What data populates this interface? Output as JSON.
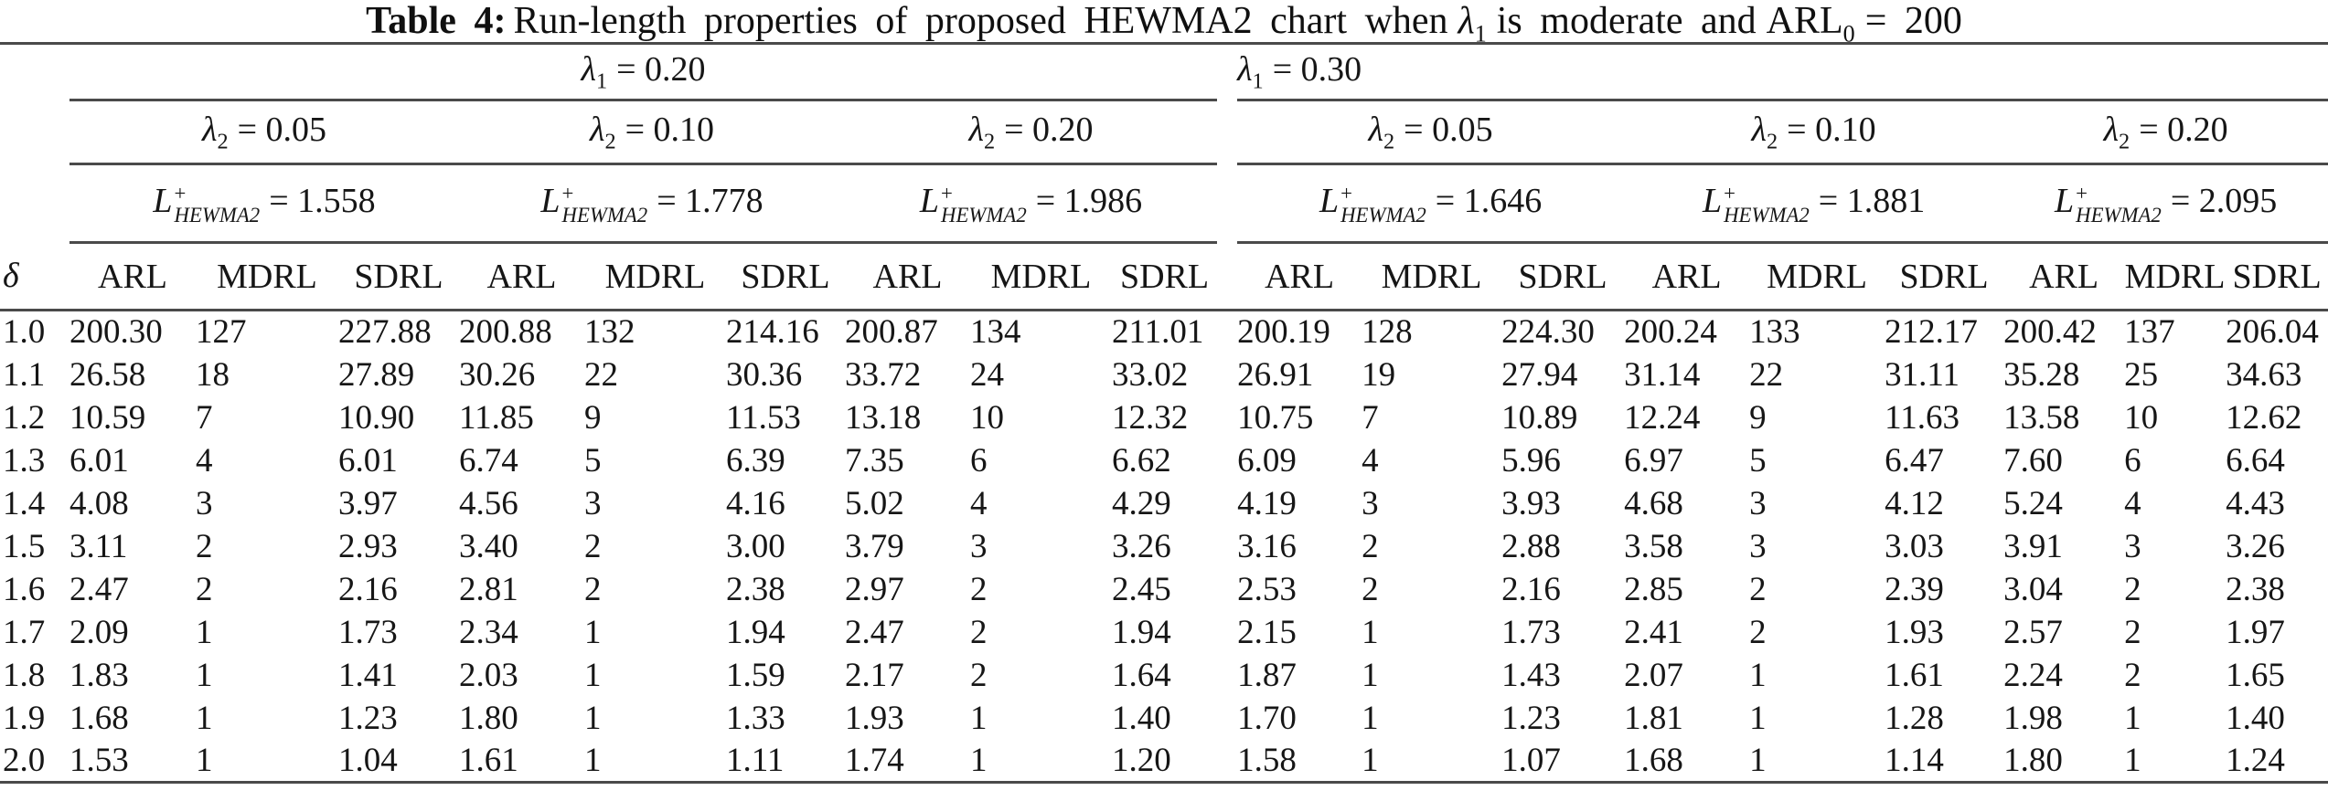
{
  "title": {
    "prefix": "Table 4:",
    "part1": "Run-length properties of proposed HEWMA2 chart when",
    "lambda_sym": "λ",
    "lambda_sub": "1",
    "part2": "is moderate and",
    "arl_base": "ARL",
    "arl_sub": "0",
    "part3": "= 200"
  },
  "groups": {
    "lambda1": [
      {
        "sym": "λ",
        "sub": "1",
        "rhs": "= 0.20"
      },
      {
        "sym": "λ",
        "sub": "1",
        "rhs": "= 0.30"
      }
    ],
    "lambda2": [
      {
        "sym": "λ",
        "sub": "2",
        "rhs": "= 0.05"
      },
      {
        "sym": "λ",
        "sub": "2",
        "rhs": "= 0.10"
      },
      {
        "sym": "λ",
        "sub": "2",
        "rhs": "= 0.20"
      },
      {
        "sym": "λ",
        "sub": "2",
        "rhs": "= 0.05"
      },
      {
        "sym": "λ",
        "sub": "2",
        "rhs": "= 0.10"
      },
      {
        "sym": "λ",
        "sub": "2",
        "rhs": "= 0.20"
      }
    ],
    "limits": [
      {
        "base": "L",
        "sup": "+",
        "sub": "HEWMA2",
        "rhs": "= 1.558"
      },
      {
        "base": "L",
        "sup": "+",
        "sub": "HEWMA2",
        "rhs": "= 1.778"
      },
      {
        "base": "L",
        "sup": "+",
        "sub": "HEWMA2",
        "rhs": "= 1.986"
      },
      {
        "base": "L",
        "sup": "+",
        "sub": "HEWMA2",
        "rhs": "= 1.646"
      },
      {
        "base": "L",
        "sup": "+",
        "sub": "HEWMA2",
        "rhs": "= 1.881"
      },
      {
        "base": "L",
        "sup": "+",
        "sub": "HEWMA2",
        "rhs": "= 2.095"
      }
    ]
  },
  "columns": {
    "delta": "δ",
    "stats": [
      "ARL",
      "MDRL",
      "SDRL"
    ]
  },
  "rows": [
    {
      "delta": "1.0",
      "values": [
        "200.30",
        "127",
        "227.88",
        "200.88",
        "132",
        "214.16",
        "200.87",
        "134",
        "211.01",
        "200.19",
        "128",
        "224.30",
        "200.24",
        "133",
        "212.17",
        "200.42",
        "137",
        "206.04"
      ]
    },
    {
      "delta": "1.1",
      "values": [
        "26.58",
        "18",
        "27.89",
        "30.26",
        "22",
        "30.36",
        "33.72",
        "24",
        "33.02",
        "26.91",
        "19",
        "27.94",
        "31.14",
        "22",
        "31.11",
        "35.28",
        "25",
        "34.63"
      ]
    },
    {
      "delta": "1.2",
      "values": [
        "10.59",
        "7",
        "10.90",
        "11.85",
        "9",
        "11.53",
        "13.18",
        "10",
        "12.32",
        "10.75",
        "7",
        "10.89",
        "12.24",
        "9",
        "11.63",
        "13.58",
        "10",
        "12.62"
      ]
    },
    {
      "delta": "1.3",
      "values": [
        "6.01",
        "4",
        "6.01",
        "6.74",
        "5",
        "6.39",
        "7.35",
        "6",
        "6.62",
        "6.09",
        "4",
        "5.96",
        "6.97",
        "5",
        "6.47",
        "7.60",
        "6",
        "6.64"
      ]
    },
    {
      "delta": "1.4",
      "values": [
        "4.08",
        "3",
        "3.97",
        "4.56",
        "3",
        "4.16",
        "5.02",
        "4",
        "4.29",
        "4.19",
        "3",
        "3.93",
        "4.68",
        "3",
        "4.12",
        "5.24",
        "4",
        "4.43"
      ]
    },
    {
      "delta": "1.5",
      "values": [
        "3.11",
        "2",
        "2.93",
        "3.40",
        "2",
        "3.00",
        "3.79",
        "3",
        "3.26",
        "3.16",
        "2",
        "2.88",
        "3.58",
        "3",
        "3.03",
        "3.91",
        "3",
        "3.26"
      ]
    },
    {
      "delta": "1.6",
      "values": [
        "2.47",
        "2",
        "2.16",
        "2.81",
        "2",
        "2.38",
        "2.97",
        "2",
        "2.45",
        "2.53",
        "2",
        "2.16",
        "2.85",
        "2",
        "2.39",
        "3.04",
        "2",
        "2.38"
      ]
    },
    {
      "delta": "1.7",
      "values": [
        "2.09",
        "1",
        "1.73",
        "2.34",
        "1",
        "1.94",
        "2.47",
        "2",
        "1.94",
        "2.15",
        "1",
        "1.73",
        "2.41",
        "2",
        "1.93",
        "2.57",
        "2",
        "1.97"
      ]
    },
    {
      "delta": "1.8",
      "values": [
        "1.83",
        "1",
        "1.41",
        "2.03",
        "1",
        "1.59",
        "2.17",
        "2",
        "1.64",
        "1.87",
        "1",
        "1.43",
        "2.07",
        "1",
        "1.61",
        "2.24",
        "2",
        "1.65"
      ]
    },
    {
      "delta": "1.9",
      "values": [
        "1.68",
        "1",
        "1.23",
        "1.80",
        "1",
        "1.33",
        "1.93",
        "1",
        "1.40",
        "1.70",
        "1",
        "1.23",
        "1.81",
        "1",
        "1.28",
        "1.98",
        "1",
        "1.40"
      ]
    },
    {
      "delta": "2.0",
      "values": [
        "1.53",
        "1",
        "1.04",
        "1.61",
        "1",
        "1.11",
        "1.74",
        "1",
        "1.20",
        "1.58",
        "1",
        "1.07",
        "1.68",
        "1",
        "1.14",
        "1.80",
        "1",
        "1.24"
      ]
    }
  ]
}
